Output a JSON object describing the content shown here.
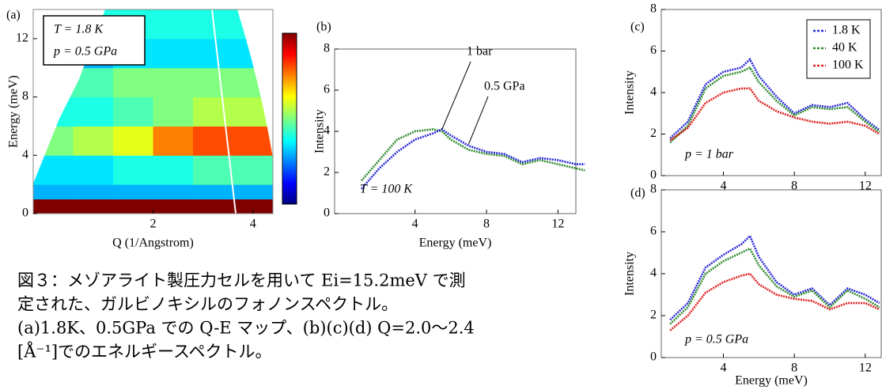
{
  "chart_data": [
    {
      "type": "heatmap",
      "panel_label": "(a)",
      "xlabel": "Q (1/Angstrom)",
      "ylabel": "Energy (meV)",
      "annotations": [
        "T = 1.8 K",
        "p = 0.5 GPa"
      ],
      "xlim": [
        -0.4,
        4.4
      ],
      "ylim": [
        0,
        14
      ],
      "xticks": [
        2,
        4
      ],
      "yticks": [
        0,
        4,
        8,
        12
      ],
      "xbins": [
        -0.4,
        0.4,
        1.2,
        2.0,
        2.8,
        3.6,
        4.4
      ],
      "ybins": [
        0,
        1,
        2,
        4,
        6,
        8,
        10,
        12,
        14
      ],
      "zlim": [
        0,
        10
      ],
      "z": [
        [
          10,
          10,
          10,
          10,
          10,
          10
        ],
        [
          3,
          3,
          3,
          3,
          3,
          3
        ],
        [
          3.5,
          3.5,
          4,
          4,
          4.5,
          4.5
        ],
        [
          5,
          5.5,
          6,
          7.5,
          8,
          8
        ],
        [
          4,
          4,
          4.5,
          5,
          5.5,
          5.5
        ],
        [
          4.5,
          4.5,
          5,
          5,
          5,
          5
        ],
        [
          3,
          3,
          3.5,
          3.5,
          3.5,
          3.5
        ],
        [
          4,
          4,
          4,
          4,
          4,
          4
        ]
      ]
    },
    {
      "type": "line",
      "panel_label": "(b)",
      "xlabel": "Energy (meV)",
      "ylabel": "Intensity",
      "annotations": [
        "T = 100 K"
      ],
      "xlim": [
        -0.5,
        13
      ],
      "ylim": [
        0,
        8
      ],
      "xticks": [
        4,
        8,
        12
      ],
      "yticks": [
        0,
        2,
        4,
        6,
        8
      ],
      "x": [
        1,
        2,
        3,
        4,
        5,
        5.5,
        6,
        7,
        8,
        9,
        10,
        11,
        12,
        13,
        13.5
      ],
      "series": [
        {
          "name": "1 bar",
          "color": "#2e8b2e",
          "values": [
            1.6,
            2.6,
            3.6,
            4.0,
            4.1,
            4.0,
            3.6,
            3.1,
            2.9,
            2.8,
            2.4,
            2.6,
            2.4,
            2.2,
            2.1
          ]
        },
        {
          "name": "0.5 GPa",
          "color": "#2828d8",
          "values": [
            1.2,
            2.2,
            3.0,
            3.6,
            3.9,
            4.1,
            3.8,
            3.3,
            3.0,
            2.9,
            2.5,
            2.7,
            2.6,
            2.4,
            2.4
          ]
        }
      ]
    },
    {
      "type": "line",
      "panel_label": "(c)",
      "ylabel": "Intensity",
      "annotations": [
        "p = 1 bar"
      ],
      "legend": "upper right",
      "xlim": [
        0.5,
        12.9
      ],
      "ylim": [
        0,
        8
      ],
      "xticks": [
        4,
        8,
        12
      ],
      "yticks": [
        0,
        2,
        4,
        6,
        8
      ],
      "x": [
        1,
        2,
        3,
        4,
        5,
        5.5,
        6,
        7,
        8,
        9,
        10,
        11,
        12,
        12.8
      ],
      "series": [
        {
          "name": "1.8 K",
          "color": "#2828d8",
          "values": [
            1.8,
            2.6,
            4.4,
            5.0,
            5.2,
            5.6,
            4.8,
            3.8,
            3.0,
            3.4,
            3.3,
            3.5,
            2.7,
            2.2
          ]
        },
        {
          "name": "40 K",
          "color": "#2e8b2e",
          "values": [
            1.6,
            2.4,
            4.2,
            4.8,
            5.0,
            5.2,
            4.5,
            3.6,
            2.9,
            3.3,
            3.2,
            3.3,
            2.6,
            2.1
          ]
        },
        {
          "name": "100 K",
          "color": "#e02020",
          "values": [
            1.7,
            2.3,
            3.5,
            4.0,
            4.2,
            4.2,
            3.6,
            3.1,
            2.8,
            2.6,
            2.5,
            2.6,
            2.4,
            2.0
          ]
        }
      ]
    },
    {
      "type": "line",
      "panel_label": "(d)",
      "xlabel": "Energy (meV)",
      "ylabel": "Intensity",
      "annotations": [
        "p = 0.5 GPa"
      ],
      "xlim": [
        0.5,
        12.9
      ],
      "ylim": [
        0,
        8
      ],
      "xticks": [
        4,
        8,
        12
      ],
      "yticks": [
        0,
        2,
        4,
        6,
        8
      ],
      "x": [
        1,
        2,
        3,
        4,
        5,
        5.5,
        6,
        7,
        8,
        9,
        10,
        11,
        12,
        12.8
      ],
      "series": [
        {
          "color": "#2828d8",
          "values": [
            1.8,
            2.6,
            4.3,
            4.9,
            5.4,
            5.8,
            4.8,
            3.6,
            3.0,
            3.3,
            2.5,
            3.3,
            3.0,
            2.6
          ]
        },
        {
          "color": "#2e8b2e",
          "values": [
            1.6,
            2.4,
            4.0,
            4.6,
            5.0,
            5.2,
            4.4,
            3.4,
            2.9,
            3.2,
            2.4,
            3.2,
            2.8,
            2.4
          ]
        },
        {
          "color": "#e02020",
          "values": [
            1.3,
            2.0,
            3.1,
            3.6,
            3.9,
            4.0,
            3.5,
            3.0,
            2.8,
            2.7,
            2.3,
            2.6,
            2.6,
            2.3
          ]
        }
      ]
    }
  ],
  "caption": [
    "図３：メゾアライト製圧力セルを用いて Ei=15.2meV で測",
    "定された、ガルビノキシルのフォノンスペクトル。",
    "(a)1.8K、0.5GPa での Q-E マップ、(b)(c)(d) Q=2.0～2.4",
    "[Å⁻¹]でのエネルギースペクトル。"
  ]
}
